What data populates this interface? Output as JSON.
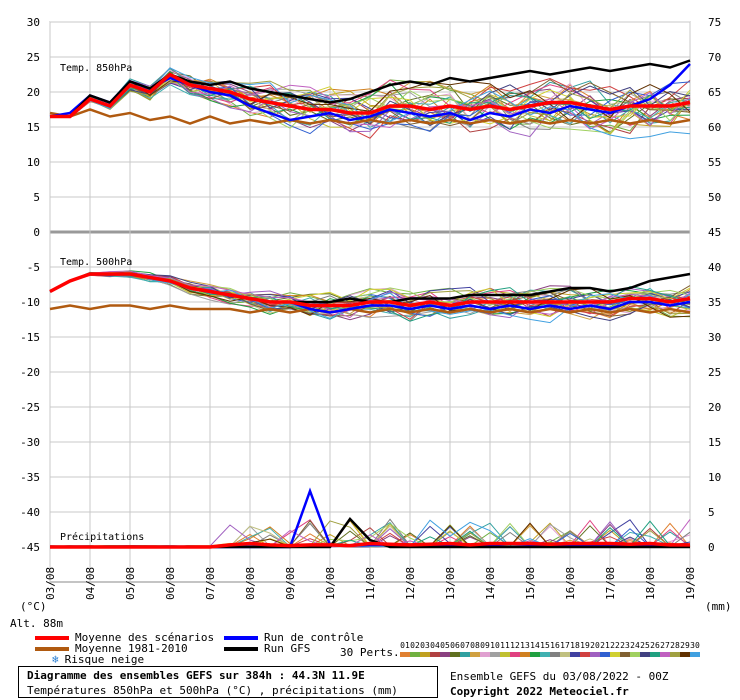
{
  "chart_data": {
    "type": "line",
    "x_labels": [
      "03/08",
      "04/08",
      "05/08",
      "06/08",
      "07/08",
      "08/08",
      "09/08",
      "10/08",
      "11/08",
      "12/08",
      "13/08",
      "14/08",
      "15/08",
      "16/08",
      "17/08",
      "18/08",
      "19/08"
    ],
    "left_axis_ticks": [
      "30",
      "25",
      "20",
      "15",
      "10",
      "5",
      "0",
      "-5",
      "-10",
      "-15",
      "-20",
      "-25",
      "-30",
      "-35",
      "-40",
      "-45"
    ],
    "right_axis_ticks": [
      "75",
      "70",
      "65",
      "60",
      "55",
      "50",
      "45",
      "40",
      "35",
      "30",
      "25",
      "20",
      "15",
      "10",
      "5",
      "0"
    ],
    "left_unit": "(°C)",
    "right_unit": "(mm)",
    "panel_labels": {
      "t850": "Temp. 850hPa",
      "t500": "Temp. 500hPa",
      "precip": "Précipitations"
    },
    "series": [
      {
        "id": "mean",
        "values_850": [
          16.5,
          16.5,
          19,
          18,
          21,
          20,
          22.5,
          21,
          20.5,
          20,
          19,
          18.5,
          18,
          17.5,
          17.5,
          17,
          17,
          18,
          18,
          17.5,
          18,
          17.5,
          18,
          17.5,
          18,
          18.5,
          18.5,
          18,
          17.5,
          18,
          18,
          18,
          18.5
        ],
        "values_500": [
          -8.5,
          -7,
          -6,
          -6,
          -6,
          -6.5,
          -7,
          -8,
          -8.5,
          -9,
          -9.5,
          -10,
          -10,
          -10.5,
          -10.5,
          -10.5,
          -10,
          -10,
          -10.5,
          -10,
          -10.5,
          -10,
          -10,
          -10,
          -10,
          -10,
          -10,
          -10,
          -10,
          -9.5,
          -9.5,
          -10,
          -9.5
        ],
        "values_precip": [
          0,
          0,
          0,
          0,
          0,
          0,
          0,
          0,
          0,
          0.3,
          0.5,
          0.3,
          0.2,
          0.3,
          0.3,
          0.2,
          0.5,
          0.4,
          0.3,
          0.4,
          0.5,
          0.3,
          0.5,
          0.5,
          0.5,
          0.4,
          0.5,
          0.5,
          0.5,
          0.4,
          0.5,
          0.3,
          0.3
        ]
      },
      {
        "id": "climo",
        "values_850": [
          17,
          16.5,
          17.5,
          16.5,
          17,
          16,
          16.5,
          15.5,
          16.5,
          15.5,
          16,
          15.5,
          16,
          15.5,
          16,
          15.5,
          16,
          15.5,
          16,
          15.5,
          16,
          15.5,
          16,
          15.5,
          16,
          15.5,
          16,
          15.5,
          16,
          15.5,
          16,
          15.5,
          16
        ],
        "values_500": [
          -11,
          -10.5,
          -11,
          -10.5,
          -10.5,
          -11,
          -10.5,
          -11,
          -11,
          -11,
          -11.5,
          -11,
          -11.5,
          -11,
          -11.5,
          -11,
          -11.5,
          -11,
          -11.5,
          -11,
          -11.5,
          -11,
          -11.5,
          -11,
          -11.5,
          -11,
          -11.5,
          -11,
          -11.5,
          -11,
          -11.5,
          -11,
          -11.5
        ]
      },
      {
        "id": "control",
        "values_850": [
          16.5,
          17,
          19.5,
          18.5,
          21.5,
          20.5,
          22,
          21,
          20,
          19.5,
          18,
          17,
          16,
          16.5,
          17,
          16,
          16.5,
          17.5,
          17,
          16.5,
          17,
          16,
          17,
          16.5,
          17.5,
          17,
          18,
          17.5,
          17,
          18,
          19,
          21,
          24
        ],
        "values_500": [
          -8.5,
          -7,
          -6,
          -6,
          -6,
          -6.5,
          -7,
          -8,
          -8.5,
          -9,
          -9.5,
          -10,
          -10,
          -11,
          -11.5,
          -11,
          -10.5,
          -10.5,
          -11,
          -10.5,
          -11,
          -10.5,
          -11,
          -10.5,
          -11,
          -10.5,
          -11,
          -10.5,
          -11,
          -10,
          -10,
          -10.5,
          -10
        ],
        "values_precip": [
          0,
          0,
          0,
          0,
          0,
          0,
          0,
          0,
          0,
          0,
          0,
          0,
          0,
          8,
          0.3,
          0.2,
          0.3,
          0.3,
          0.2,
          0.3,
          0.2,
          0.3,
          0.2,
          0.5,
          0.3,
          0.3,
          0.3,
          0.2,
          0.3,
          0.3,
          0.2,
          0.3,
          0.2
        ]
      },
      {
        "id": "gfs",
        "values_850": [
          16.5,
          16.5,
          19.5,
          18.5,
          21.5,
          20.5,
          22.5,
          21.5,
          21,
          21.5,
          20.5,
          20,
          19.5,
          19,
          18.5,
          19,
          20,
          21,
          21.5,
          21,
          22,
          21.5,
          22,
          22.5,
          23,
          22.5,
          23,
          23.5,
          23,
          23.5,
          24,
          23.5,
          24.5
        ],
        "values_500": [
          -8.5,
          -7,
          -6,
          -6,
          -6,
          -6.5,
          -7,
          -8,
          -8.5,
          -9,
          -9.5,
          -10,
          -10,
          -10,
          -10,
          -9.5,
          -10,
          -10,
          -9.5,
          -9.5,
          -9.5,
          -9,
          -9,
          -9,
          -9,
          -8.5,
          -8,
          -8,
          -8.5,
          -8,
          -7,
          -6.5,
          -6
        ],
        "values_precip": [
          0,
          0,
          0,
          0,
          0,
          0,
          0,
          0,
          0,
          0,
          0,
          0,
          0,
          0,
          0,
          4,
          1,
          0,
          0,
          0,
          0,
          0,
          0,
          0,
          0,
          0,
          0,
          0,
          0,
          0,
          0,
          0,
          0
        ]
      }
    ],
    "perturbation_label": "30 Perts.",
    "perturbation_numbers": [
      "01",
      "02",
      "03",
      "04",
      "05",
      "06",
      "07",
      "08",
      "09",
      "10",
      "11",
      "12",
      "13",
      "14",
      "15",
      "16",
      "17",
      "18",
      "19",
      "20",
      "21",
      "22",
      "23",
      "24",
      "25",
      "26",
      "27",
      "28",
      "29",
      "30"
    ],
    "perturbation_colors": [
      "#e08030",
      "#70b040",
      "#c0a020",
      "#b04040",
      "#8a4080",
      "#607020",
      "#30a0a0",
      "#d0a040",
      "#e0a0d0",
      "#a0a0a0",
      "#c0c030",
      "#e04080",
      "#d08020",
      "#20a040",
      "#40b0b0",
      "#808080",
      "#c0c080",
      "#4040a0",
      "#d04040",
      "#a060c0",
      "#3060d0",
      "#d0d030",
      "#806030",
      "#a0d060",
      "#404080",
      "#20a080",
      "#c060c0",
      "#a0a040",
      "#603000",
      "#40a0e0"
    ],
    "highlights": [
      {
        "label": "Risque neige"
      }
    ],
    "title": "Diagramme des ensembles GEFS sur 384h : 44.3N 11.9E",
    "subtitle": "Températures 850hPa et 500hPa (°C) , précipitations (mm)",
    "altitude": "Alt. 88m",
    "ensemble_run": "Ensemble GEFS du 03/08/2022 - 00Z",
    "copyright": "Copyright 2022 Meteociel.fr"
  },
  "legend": {
    "mean_label": "Moyenne des scénarios",
    "climo_label": "Moyenne 1981-2010",
    "snow_label": "Risque neige",
    "control_label": "Run de contrôle",
    "gfs_label": "Run GFS"
  },
  "colors": {
    "mean": "#ff0000",
    "climo": "#b05a10",
    "control": "#0000ff",
    "gfs": "#000000",
    "grid": "#c8c8c8",
    "snow": "#2a7fd4"
  }
}
